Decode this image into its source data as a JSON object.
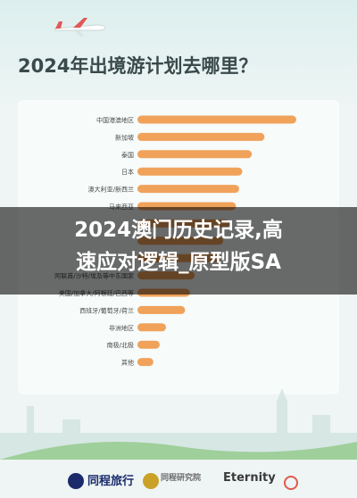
{
  "header": {
    "title": "2024年出境游计划去哪里？"
  },
  "overlay": {
    "line1": "2024澳门历史记录,高",
    "line2": "速应对逻辑_原型版SA"
  },
  "footer": {
    "brand1": "同程旅行",
    "brand2": "同程研究院",
    "brand3": "Eternity"
  },
  "colors": {
    "bar": "#f0a25a",
    "title": "#3a4a4a",
    "overlay": "#000000"
  },
  "chart_data": {
    "type": "bar",
    "orientation": "horizontal",
    "categories": [
      "中国港澳地区",
      "新加坡",
      "泰国",
      "日本",
      "澳大利亚/新西兰",
      "马来西亚",
      "",
      "",
      "",
      "阿联酋/沙特/埃及等中东国家",
      "美国/加拿大/阿根廷/巴西等",
      "西班牙/葡萄牙/荷兰",
      "非洲地区",
      "南极/北极",
      "其他"
    ],
    "values": [
      100,
      80,
      72,
      66,
      64,
      62,
      58,
      54,
      52,
      36,
      33,
      30,
      18,
      14,
      10
    ],
    "title": "2024年出境游计划去哪里？"
  }
}
